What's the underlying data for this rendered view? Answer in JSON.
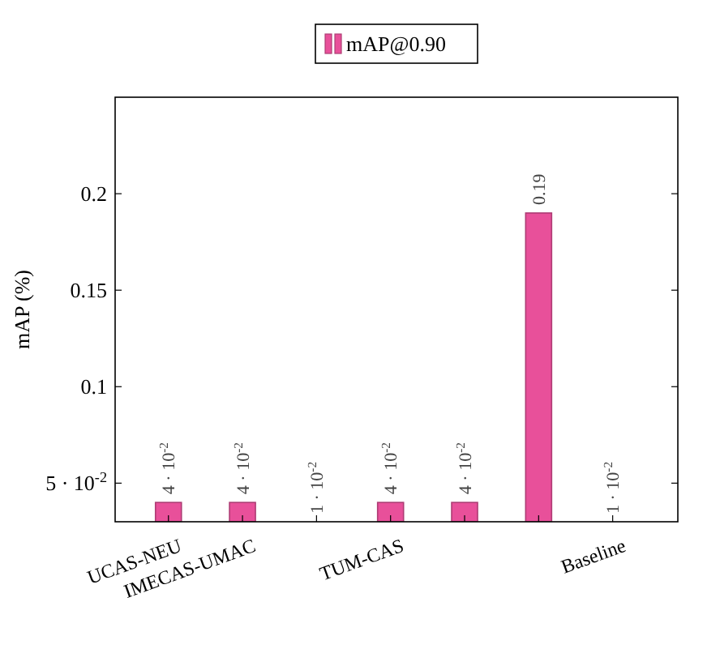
{
  "chart_data": {
    "type": "bar",
    "ylabel": "mAP (%)",
    "categories": [
      "UCAS-NEU",
      "IMECAS-UMAC",
      null,
      "TUM-CAS",
      null,
      null,
      "Baseline"
    ],
    "series": [
      {
        "name": "mAP@0.90",
        "color": "#e8509a",
        "values": [
          0.04,
          0.04,
          null,
          0.04,
          0.04,
          0.19,
          null
        ],
        "value_labels": [
          "4 · 10$^{-2}$",
          "4 · 10$^{-2}$",
          "1 · 10$^{-2}$",
          "4 · 10$^{-2}$",
          "4 · 10$^{-2}$",
          "0.19",
          "1 · 10$^{-2}$"
        ]
      }
    ],
    "ylim": [
      0.03,
      0.25
    ],
    "yticks": [
      {
        "value": 0.05,
        "label": "5 · 10$^{-2}$"
      },
      0.1,
      0.15,
      0.2
    ],
    "legend": "top",
    "grid": false
  }
}
